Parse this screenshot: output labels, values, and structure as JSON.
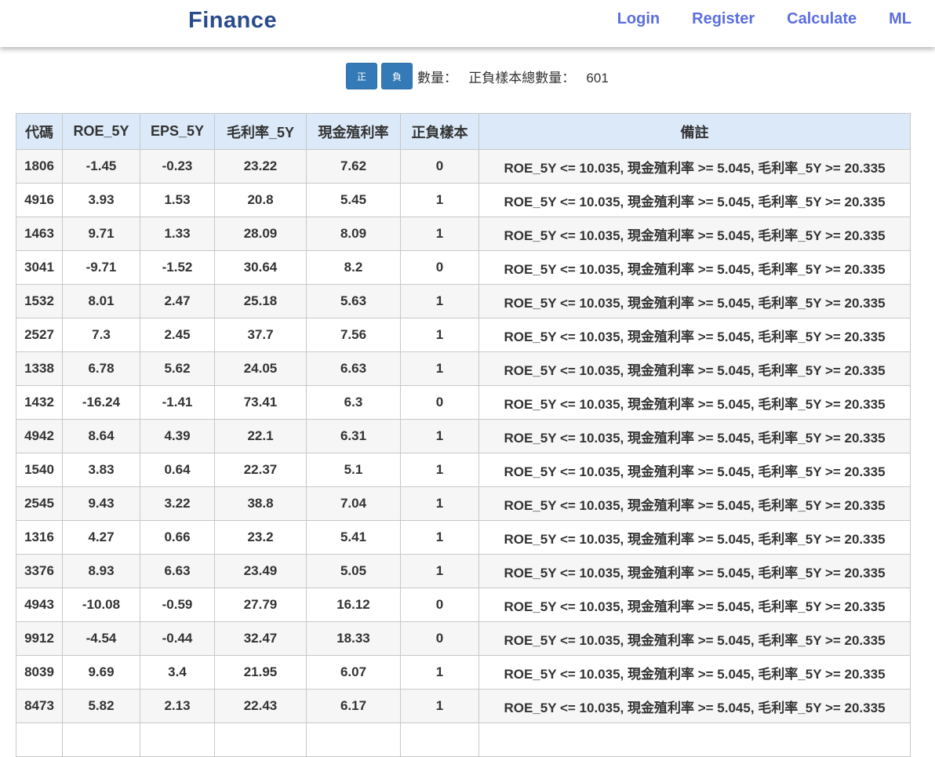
{
  "navbar": {
    "brand": "Finance",
    "links": [
      "Login",
      "Register",
      "Calculate",
      "ML"
    ]
  },
  "controls": {
    "positive_button": "正",
    "negative_button": "負",
    "count_label": "數量：",
    "total_label": "正負樣本總數量：",
    "total_value": "601"
  },
  "table": {
    "headers": [
      "代碼",
      "ROE_5Y",
      "EPS_5Y",
      "毛利率_5Y",
      "現金殖利率",
      "正負樣本",
      "備註"
    ],
    "rows": [
      [
        "1806",
        "-1.45",
        "-0.23",
        "23.22",
        "7.62",
        "0",
        "ROE_5Y <= 10.035, 現金殖利率 >= 5.045, 毛利率_5Y >= 20.335"
      ],
      [
        "4916",
        "3.93",
        "1.53",
        "20.8",
        "5.45",
        "1",
        "ROE_5Y <= 10.035, 現金殖利率 >= 5.045, 毛利率_5Y >= 20.335"
      ],
      [
        "1463",
        "9.71",
        "1.33",
        "28.09",
        "8.09",
        "1",
        "ROE_5Y <= 10.035, 現金殖利率 >= 5.045, 毛利率_5Y >= 20.335"
      ],
      [
        "3041",
        "-9.71",
        "-1.52",
        "30.64",
        "8.2",
        "0",
        "ROE_5Y <= 10.035, 現金殖利率 >= 5.045, 毛利率_5Y >= 20.335"
      ],
      [
        "1532",
        "8.01",
        "2.47",
        "25.18",
        "5.63",
        "1",
        "ROE_5Y <= 10.035, 現金殖利率 >= 5.045, 毛利率_5Y >= 20.335"
      ],
      [
        "2527",
        "7.3",
        "2.45",
        "37.7",
        "7.56",
        "1",
        "ROE_5Y <= 10.035, 現金殖利率 >= 5.045, 毛利率_5Y >= 20.335"
      ],
      [
        "1338",
        "6.78",
        "5.62",
        "24.05",
        "6.63",
        "1",
        "ROE_5Y <= 10.035, 現金殖利率 >= 5.045, 毛利率_5Y >= 20.335"
      ],
      [
        "1432",
        "-16.24",
        "-1.41",
        "73.41",
        "6.3",
        "0",
        "ROE_5Y <= 10.035, 現金殖利率 >= 5.045, 毛利率_5Y >= 20.335"
      ],
      [
        "4942",
        "8.64",
        "4.39",
        "22.1",
        "6.31",
        "1",
        "ROE_5Y <= 10.035, 現金殖利率 >= 5.045, 毛利率_5Y >= 20.335"
      ],
      [
        "1540",
        "3.83",
        "0.64",
        "22.37",
        "5.1",
        "1",
        "ROE_5Y <= 10.035, 現金殖利率 >= 5.045, 毛利率_5Y >= 20.335"
      ],
      [
        "2545",
        "9.43",
        "3.22",
        "38.8",
        "7.04",
        "1",
        "ROE_5Y <= 10.035, 現金殖利率 >= 5.045, 毛利率_5Y >= 20.335"
      ],
      [
        "1316",
        "4.27",
        "0.66",
        "23.2",
        "5.41",
        "1",
        "ROE_5Y <= 10.035, 現金殖利率 >= 5.045, 毛利率_5Y >= 20.335"
      ],
      [
        "3376",
        "8.93",
        "6.63",
        "23.49",
        "5.05",
        "1",
        "ROE_5Y <= 10.035, 現金殖利率 >= 5.045, 毛利率_5Y >= 20.335"
      ],
      [
        "4943",
        "-10.08",
        "-0.59",
        "27.79",
        "16.12",
        "0",
        "ROE_5Y <= 10.035, 現金殖利率 >= 5.045, 毛利率_5Y >= 20.335"
      ],
      [
        "9912",
        "-4.54",
        "-0.44",
        "32.47",
        "18.33",
        "0",
        "ROE_5Y <= 10.035, 現金殖利率 >= 5.045, 毛利率_5Y >= 20.335"
      ],
      [
        "8039",
        "9.69",
        "3.4",
        "21.95",
        "6.07",
        "1",
        "ROE_5Y <= 10.035, 現金殖利率 >= 5.045, 毛利率_5Y >= 20.335"
      ],
      [
        "8473",
        "5.82",
        "2.13",
        "22.43",
        "6.17",
        "1",
        "ROE_5Y <= 10.035, 現金殖利率 >= 5.045, 毛利率_5Y >= 20.335"
      ],
      [
        "",
        "",
        "",
        "",
        "",
        "",
        ""
      ]
    ]
  },
  "colors": {
    "brand": "#2a4b8d",
    "nav_link": "#5b6ee0",
    "button": "#337ab7",
    "header_bg": "#dbe9f8",
    "row_stripe": "#f6f6f6"
  }
}
